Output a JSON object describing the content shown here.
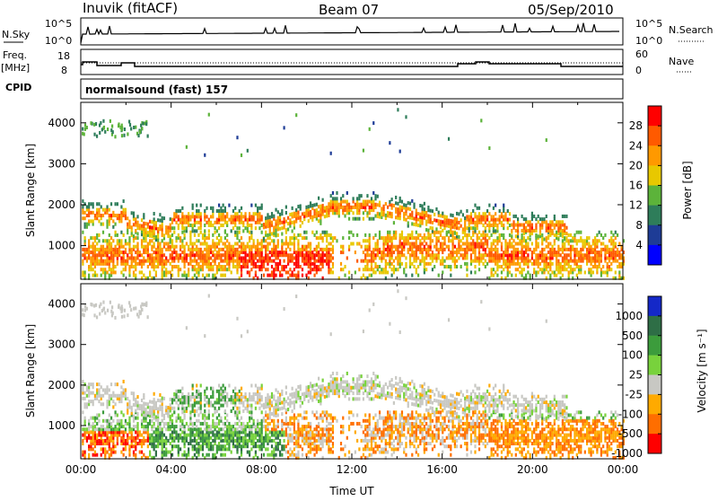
{
  "header": {
    "station": "Inuvik (fitACF)",
    "beam": "Beam 07",
    "date": "05/Sep/2010"
  },
  "noise_panel": {
    "left_label": "N.Sky",
    "left_ticks": [
      "10^5",
      "10^0"
    ],
    "right_label": "N.Search",
    "right_ticks": [
      "10^5",
      "10^0"
    ]
  },
  "freq_panel": {
    "left_label_1": "Freq.",
    "left_label_2": "[MHz]",
    "left_ticks": [
      "18",
      "8"
    ],
    "right_label": "Nave",
    "right_ticks": [
      "60",
      "0"
    ]
  },
  "cpid_panel": {
    "label": "CPID",
    "text": "normalsound (fast) 157"
  },
  "colors": {
    "power_scale": [
      "#0000ff",
      "#1e3c96",
      "#2e7d5a",
      "#5cb33a",
      "#e8c800",
      "#ff9900",
      "#ff5a00",
      "#ff0000"
    ],
    "velocity_scale": [
      "#1428c8",
      "#2e6e46",
      "#3c9c3c",
      "#78d23c",
      "#c8c8c3",
      "#ffaa00",
      "#ff6e00",
      "#ff0000"
    ]
  },
  "chart_data": [
    {
      "type": "heatmap",
      "name": "power",
      "ylabel": "Slant Range [km]",
      "xlabel": "",
      "xlim": [
        "00:00",
        "24:00"
      ],
      "ylim": [
        180,
        4500
      ],
      "yticks": [
        1000,
        2000,
        3000,
        4000
      ],
      "colorbar_label": "Power [dB]",
      "colorbar_ticks": [
        "28",
        "24",
        "20",
        "16",
        "12",
        "8",
        "4"
      ]
    },
    {
      "type": "heatmap",
      "name": "velocity",
      "ylabel": "Slant Range [km]",
      "xlabel": "Time UT",
      "xlim": [
        "00:00",
        "24:00"
      ],
      "xticks": [
        "00:00",
        "04:00",
        "08:00",
        "12:00",
        "16:00",
        "20:00",
        "00:00"
      ],
      "ylim": [
        180,
        4500
      ],
      "yticks": [
        1000,
        2000,
        3000,
        4000
      ],
      "colorbar_label": "Velocity [m s⁻¹]",
      "colorbar_ticks": [
        "1000",
        "500",
        "100",
        "25",
        "-25",
        "-100",
        "-500",
        "-1000"
      ]
    }
  ]
}
